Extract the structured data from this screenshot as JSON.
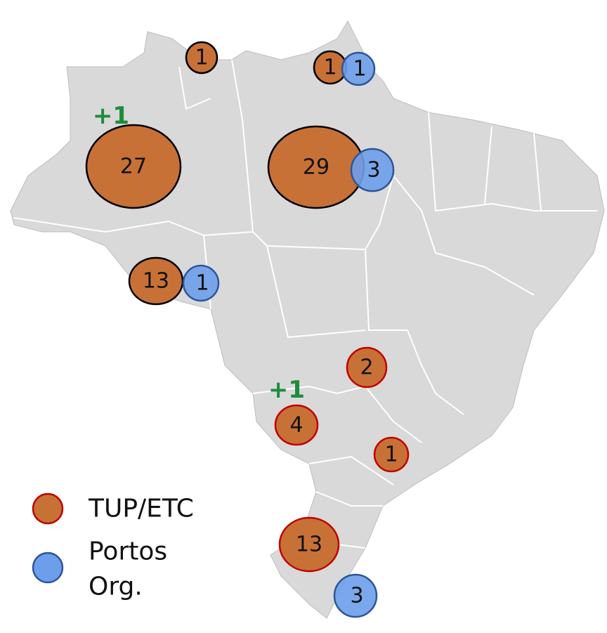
{
  "legend": [
    {
      "label_lines": [
        "TUP/ETC"
      ],
      "markers": [
        1,
        1,
        27,
        29,
        13,
        2,
        4,
        1,
        13
      ]
    },
    {
      "label_lines": [
        "Portos",
        "Org."
      ],
      "markers": [
        1,
        3,
        1,
        3
      ]
    }
  ],
  "annotations": [
    "+1",
    "+1"
  ]
}
